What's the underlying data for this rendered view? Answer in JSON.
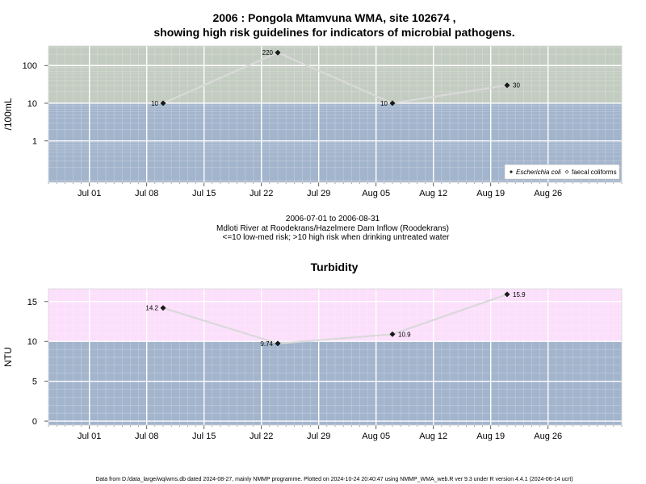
{
  "chart_data": [
    {
      "type": "line",
      "title_lines": [
        "2006 : Pongola Mtamvuna WMA, site 102674 ,",
        "showing high risk guidelines for indicators of microbial pathogens."
      ],
      "ylabel": "/100mL",
      "yscale": "log",
      "ylim": [
        0.08,
        330
      ],
      "yticks": [
        1,
        10,
        100
      ],
      "ytick_labels": [
        "1",
        "10",
        "100"
      ],
      "xlim": [
        "2006-06-26",
        "2006-09-04"
      ],
      "xticks": [
        "2006-07-01",
        "2006-07-08",
        "2006-07-15",
        "2006-07-22",
        "2006-07-29",
        "2006-08-05",
        "2006-08-12",
        "2006-08-19",
        "2006-08-26"
      ],
      "xtick_labels": [
        "Jul 01",
        "Jul 08",
        "Jul 15",
        "Jul 22",
        "Jul 29",
        "Aug 05",
        "Aug 12",
        "Aug 19",
        "Aug 26"
      ],
      "bands": [
        {
          "from": 0.08,
          "to": 10,
          "color": "#a3b5cd"
        },
        {
          "from": 10,
          "to": 330,
          "color": "#c3ccc1"
        }
      ],
      "series": [
        {
          "name": "Escherichia coli",
          "x": [
            "2006-07-10",
            "2006-07-24",
            "2006-08-07",
            "2006-08-21"
          ],
          "values": [
            10,
            220,
            10,
            30
          ],
          "labels": [
            "10",
            "220",
            "10",
            "30"
          ],
          "label_side": [
            "left",
            "left",
            "left",
            "right"
          ]
        }
      ],
      "legend": {
        "position": "bottom-right",
        "entries": [
          "Escherichia coli",
          "faecal coliforms"
        ]
      },
      "info_lines": [
        "2006-07-01 to 2006-08-31",
        "Mdloti River at Roodekrans/Hazelmere Dam Inflow (Roodekrans)",
        "<=10 low-med risk; >10 high risk when drinking untreated water"
      ],
      "grid": true
    },
    {
      "type": "line",
      "title_lines": [
        "Turbidity"
      ],
      "ylabel": "NTU",
      "yscale": "linear",
      "ylim": [
        -0.5,
        16.6
      ],
      "yticks": [
        0,
        5,
        10,
        15
      ],
      "ytick_labels": [
        "0",
        "5",
        "10",
        "15"
      ],
      "xlim": [
        "2006-06-26",
        "2006-09-04"
      ],
      "xticks": [
        "2006-07-01",
        "2006-07-08",
        "2006-07-15",
        "2006-07-22",
        "2006-07-29",
        "2006-08-05",
        "2006-08-12",
        "2006-08-19",
        "2006-08-26"
      ],
      "xtick_labels": [
        "Jul 01",
        "Jul 08",
        "Jul 15",
        "Jul 22",
        "Jul 29",
        "Aug 05",
        "Aug 12",
        "Aug 19",
        "Aug 26"
      ],
      "bands": [
        {
          "from": -0.5,
          "to": 10,
          "color": "#a3b5cd"
        },
        {
          "from": 10,
          "to": 16.6,
          "color": "#fbdffb"
        }
      ],
      "series": [
        {
          "name": "",
          "x": [
            "2006-07-10",
            "2006-07-24",
            "2006-08-07",
            "2006-08-21"
          ],
          "values": [
            14.2,
            9.74,
            10.9,
            15.9
          ],
          "labels": [
            "14.2",
            "9.74",
            "10.9",
            "15.9"
          ],
          "label_side": [
            "left",
            "left",
            "right",
            "right"
          ]
        }
      ],
      "grid": true
    }
  ],
  "footer": "Data from D:/data_large/wq/wms.db dated 2024-08-27, mainly NMMP programme. Plotted on 2024-10-24 20:40:47 using NMMP_WMA_web.R ver 9.3 under R version 4.4.1 (2024-06-14 ucrt)",
  "colors": {
    "grid": "#ffffff",
    "line": "#d9d9d9",
    "point": "#1a1a1a",
    "legend_bg": "#ffffff"
  }
}
